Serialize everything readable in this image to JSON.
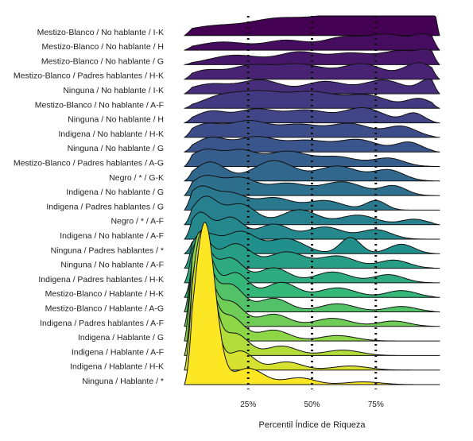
{
  "chart_data": {
    "type": "ridgeline",
    "title": "",
    "xlabel": "Percentil Índice de Riqueza",
    "ylabel": "",
    "xlim": [
      0,
      100
    ],
    "grid": false,
    "colormap": "viridis",
    "x_ticks": [
      {
        "value": 25,
        "label": "25%"
      },
      {
        "value": 50,
        "label": "50%"
      },
      {
        "value": 75,
        "label": "75%"
      }
    ],
    "reference_lines": [
      25,
      50,
      75
    ],
    "series": [
      {
        "label": "Mestizo-Blanco / No hablante / I-K",
        "peaks": [
          [
            12,
            0.35,
            12
          ],
          [
            35,
            0.45,
            10
          ],
          [
            60,
            0.7,
            14
          ],
          [
            85,
            1.0,
            12
          ],
          [
            97,
            0.9,
            4
          ]
        ]
      },
      {
        "label": "Mestizo-Blanco / No hablante / H",
        "peaks": [
          [
            15,
            0.3,
            10
          ],
          [
            40,
            0.35,
            8
          ],
          [
            62,
            0.45,
            8
          ],
          [
            80,
            0.55,
            8
          ],
          [
            95,
            0.5,
            5
          ]
        ]
      },
      {
        "label": "Mestizo-Blanco / No hablante / G",
        "peaks": [
          [
            20,
            0.35,
            10
          ],
          [
            45,
            0.45,
            8
          ],
          [
            65,
            0.4,
            8
          ],
          [
            85,
            0.5,
            8
          ],
          [
            96,
            0.35,
            4
          ]
        ]
      },
      {
        "label": "Mestizo-Blanco / Padres hablantes / H-K",
        "peaks": [
          [
            8,
            0.3,
            6
          ],
          [
            25,
            0.45,
            8
          ],
          [
            45,
            0.55,
            10
          ],
          [
            70,
            0.55,
            8
          ],
          [
            92,
            0.6,
            6
          ]
        ]
      },
      {
        "label": "Ninguna / No hablante / I-K",
        "peaks": [
          [
            10,
            0.35,
            8
          ],
          [
            30,
            0.5,
            8
          ],
          [
            55,
            0.45,
            8
          ],
          [
            78,
            0.5,
            8
          ],
          [
            96,
            0.5,
            4
          ]
        ]
      },
      {
        "label": "Mestizo-Blanco / No hablante / A-F",
        "peaks": [
          [
            15,
            0.45,
            8
          ],
          [
            30,
            0.5,
            8
          ],
          [
            50,
            0.6,
            10
          ],
          [
            72,
            0.45,
            8
          ],
          [
            92,
            0.35,
            5
          ]
        ]
      },
      {
        "label": "Ninguna / No hablante / H",
        "peaks": [
          [
            10,
            0.4,
            6
          ],
          [
            28,
            0.5,
            8
          ],
          [
            48,
            0.45,
            8
          ],
          [
            70,
            0.55,
            8
          ],
          [
            90,
            0.35,
            4
          ]
        ]
      },
      {
        "label": "Indigena / No hablante / H-K",
        "peaks": [
          [
            8,
            0.45,
            6
          ],
          [
            25,
            0.6,
            8
          ],
          [
            45,
            0.45,
            8
          ],
          [
            65,
            0.5,
            8
          ],
          [
            85,
            0.4,
            6
          ]
        ]
      },
      {
        "label": "Ninguna / No hablante / G",
        "peaks": [
          [
            10,
            0.5,
            6
          ],
          [
            28,
            0.55,
            8
          ],
          [
            48,
            0.4,
            8
          ],
          [
            68,
            0.45,
            8
          ],
          [
            88,
            0.35,
            5
          ]
        ]
      },
      {
        "label": "Mestizo-Blanco / Padres hablantes / A-G",
        "peaks": [
          [
            8,
            0.6,
            6
          ],
          [
            22,
            0.55,
            6
          ],
          [
            40,
            0.55,
            8
          ],
          [
            60,
            0.35,
            8
          ],
          [
            80,
            0.3,
            6
          ]
        ]
      },
      {
        "label": "Negro / * / G-K",
        "peaks": [
          [
            10,
            0.7,
            6
          ],
          [
            35,
            0.75,
            8
          ],
          [
            60,
            0.55,
            8
          ],
          [
            80,
            0.4,
            6
          ]
        ]
      },
      {
        "label": "Indigena / No hablante / G",
        "peaks": [
          [
            8,
            0.7,
            6
          ],
          [
            22,
            0.6,
            6
          ],
          [
            40,
            0.45,
            8
          ],
          [
            62,
            0.5,
            8
          ],
          [
            82,
            0.35,
            5
          ]
        ]
      },
      {
        "label": "Indigena / Padres hablantes / G",
        "peaks": [
          [
            6,
            0.8,
            5
          ],
          [
            18,
            0.6,
            6
          ],
          [
            35,
            0.45,
            7
          ],
          [
            55,
            0.35,
            7
          ],
          [
            75,
            0.35,
            4
          ]
        ]
      },
      {
        "label": "Negro / * / A-F",
        "peaks": [
          [
            8,
            1.0,
            5
          ],
          [
            22,
            0.75,
            6
          ],
          [
            45,
            0.55,
            7
          ],
          [
            68,
            0.35,
            7
          ],
          [
            90,
            0.2,
            5
          ]
        ]
      },
      {
        "label": "Indigena / No hablante / A-F",
        "peaks": [
          [
            6,
            0.95,
            4
          ],
          [
            18,
            0.8,
            5
          ],
          [
            35,
            0.55,
            6
          ],
          [
            55,
            0.45,
            7
          ],
          [
            75,
            0.35,
            6
          ]
        ]
      },
      {
        "label": "Ninguna / Padres hablantes / *",
        "peaks": [
          [
            8,
            0.7,
            5
          ],
          [
            22,
            0.8,
            6
          ],
          [
            40,
            0.55,
            7
          ],
          [
            65,
            0.6,
            4
          ],
          [
            85,
            0.35,
            5
          ]
        ]
      },
      {
        "label": "Ninguna / No hablante / A-F",
        "peaks": [
          [
            6,
            1.2,
            4
          ],
          [
            20,
            0.9,
            6
          ],
          [
            40,
            0.6,
            7
          ],
          [
            60,
            0.45,
            7
          ],
          [
            82,
            0.3,
            6
          ]
        ]
      },
      {
        "label": "Indigena / Padres hablantes / H-K",
        "peaks": [
          [
            6,
            1.6,
            4
          ],
          [
            18,
            0.9,
            5
          ],
          [
            35,
            0.55,
            6
          ],
          [
            58,
            0.4,
            7
          ],
          [
            80,
            0.3,
            6
          ]
        ]
      },
      {
        "label": "Mestizo-Blanco / Hablante / H-K",
        "peaks": [
          [
            7,
            2.0,
            4
          ],
          [
            20,
            0.9,
            5
          ],
          [
            38,
            0.55,
            6
          ],
          [
            60,
            0.35,
            7
          ],
          [
            85,
            0.25,
            6
          ]
        ]
      },
      {
        "label": "Mestizo-Blanco / Hablante / A-G",
        "peaks": [
          [
            6,
            2.6,
            4
          ],
          [
            18,
            1.0,
            5
          ],
          [
            35,
            0.5,
            6
          ],
          [
            60,
            0.3,
            7
          ],
          [
            85,
            0.2,
            6
          ]
        ]
      },
      {
        "label": "Indigena / Padres hablantes / A-F",
        "peaks": [
          [
            6,
            3.2,
            4
          ],
          [
            18,
            0.9,
            5
          ],
          [
            35,
            0.45,
            6
          ],
          [
            58,
            0.3,
            7
          ],
          [
            82,
            0.2,
            6
          ]
        ]
      },
      {
        "label": "Indigena / Hablante / G",
        "peaks": [
          [
            6,
            4.0,
            4
          ],
          [
            18,
            0.9,
            5
          ],
          [
            35,
            0.4,
            6
          ],
          [
            60,
            0.2,
            7
          ]
        ]
      },
      {
        "label": "Indigena / Hablante / A-F",
        "peaks": [
          [
            7,
            4.5,
            4
          ],
          [
            20,
            0.8,
            5
          ],
          [
            38,
            0.35,
            6
          ],
          [
            62,
            0.2,
            7
          ]
        ]
      },
      {
        "label": "Indigena / Hablante / H-K",
        "peaks": [
          [
            7,
            5.2,
            4
          ],
          [
            22,
            0.7,
            5
          ],
          [
            40,
            0.3,
            6
          ],
          [
            65,
            0.15,
            7
          ]
        ]
      },
      {
        "label": "Ninguna / Hablante / *",
        "peaks": [
          [
            8,
            6.0,
            4
          ],
          [
            25,
            0.6,
            6
          ],
          [
            45,
            0.25,
            6
          ],
          [
            70,
            0.1,
            7
          ]
        ]
      }
    ]
  }
}
